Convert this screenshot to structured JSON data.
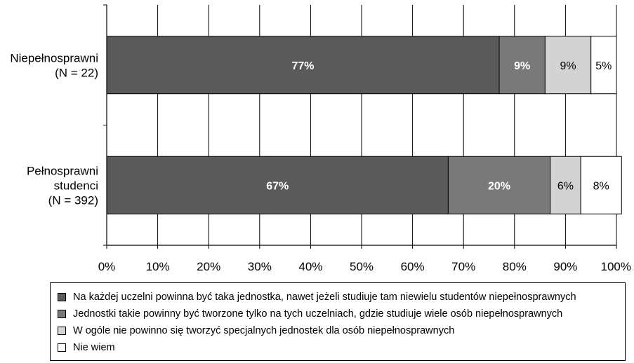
{
  "chart_data": {
    "type": "bar",
    "orientation": "horizontal",
    "stacked": true,
    "percent": true,
    "categories": [
      [
        "Niepełnosprawni",
        "(N = 22)"
      ],
      [
        "Pełnosprawni",
        "studenci",
        "(N = 392)"
      ]
    ],
    "series": [
      {
        "name": "Na każdej uczelni powinna być taka jednostka, nawet jeżeli studiuje tam niewielu studentów niepełnosprawnych",
        "values": [
          77,
          67
        ],
        "labels": [
          "77%",
          "67%"
        ],
        "color": "#5a5a5a",
        "label_color": "#ffffff",
        "label_bold": true
      },
      {
        "name": "Jednostki takie powinny być tworzone tylko na tych uczelniach, gdzie studiuje wiele osób niepełnosprawnych",
        "values": [
          9,
          20
        ],
        "labels": [
          "9%",
          "20%"
        ],
        "color": "#797979",
        "label_color": "#ffffff",
        "label_bold": true
      },
      {
        "name": "W ogóle nie powinno się tworzyć specjalnych jednostek dla osób niepełnosprawnych",
        "values": [
          9,
          6
        ],
        "labels": [
          "9%",
          "6%"
        ],
        "color": "#d3d3d3",
        "label_color": "#000000",
        "label_bold": false
      },
      {
        "name": "Nie wiem",
        "values": [
          5,
          8
        ],
        "labels": [
          "5%",
          "8%"
        ],
        "color": "#ffffff",
        "label_color": "#000000",
        "label_bold": false
      }
    ],
    "xlim": [
      0,
      100
    ],
    "xticks": [
      "0%",
      "10%",
      "20%",
      "30%",
      "40%",
      "50%",
      "60%",
      "70%",
      "80%",
      "90%",
      "100%"
    ],
    "grid": true,
    "legend_position": "bottom"
  }
}
